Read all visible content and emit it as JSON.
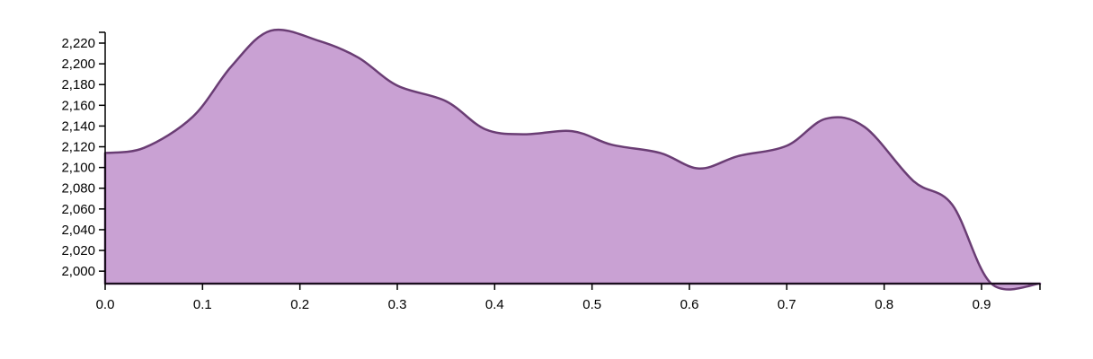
{
  "chart_data": {
    "type": "area",
    "title": "",
    "xlabel": "",
    "ylabel": "",
    "grid": false,
    "xlim": [
      0,
      0.96
    ],
    "ylim": [
      1988,
      2233
    ],
    "baseline": 1988,
    "x_ticks": [
      0.0,
      0.1,
      0.2,
      0.3,
      0.4,
      0.5,
      0.6,
      0.7,
      0.8,
      0.9
    ],
    "x_tick_labels": [
      "0.0",
      "0.1",
      "0.2",
      "0.3",
      "0.4",
      "0.5",
      "0.6",
      "0.7",
      "0.8",
      "0.9"
    ],
    "y_ticks": [
      2000,
      2020,
      2040,
      2060,
      2080,
      2100,
      2120,
      2140,
      2160,
      2180,
      2200,
      2220
    ],
    "y_tick_labels": [
      "2,000",
      "2,020",
      "2,040",
      "2,060",
      "2,080",
      "2,100",
      "2,120",
      "2,140",
      "2,160",
      "2,180",
      "2,200",
      "2,220"
    ],
    "fill_color": "#c9a1d3",
    "line_color": "#6a3d74",
    "series": [
      {
        "x": [
          0.0,
          0.04,
          0.09,
          0.13,
          0.17,
          0.22,
          0.26,
          0.3,
          0.35,
          0.39,
          0.43,
          0.48,
          0.52,
          0.57,
          0.61,
          0.65,
          0.7,
          0.74,
          0.78,
          0.83,
          0.87,
          0.91,
          0.96
        ],
        "values": [
          2114,
          2119,
          2149,
          2198,
          2232,
          2222,
          2206,
          2179,
          2164,
          2137,
          2132,
          2135,
          2122,
          2114,
          2099,
          2111,
          2121,
          2147,
          2139,
          2087,
          2064,
          1988,
          1988
        ]
      }
    ]
  }
}
